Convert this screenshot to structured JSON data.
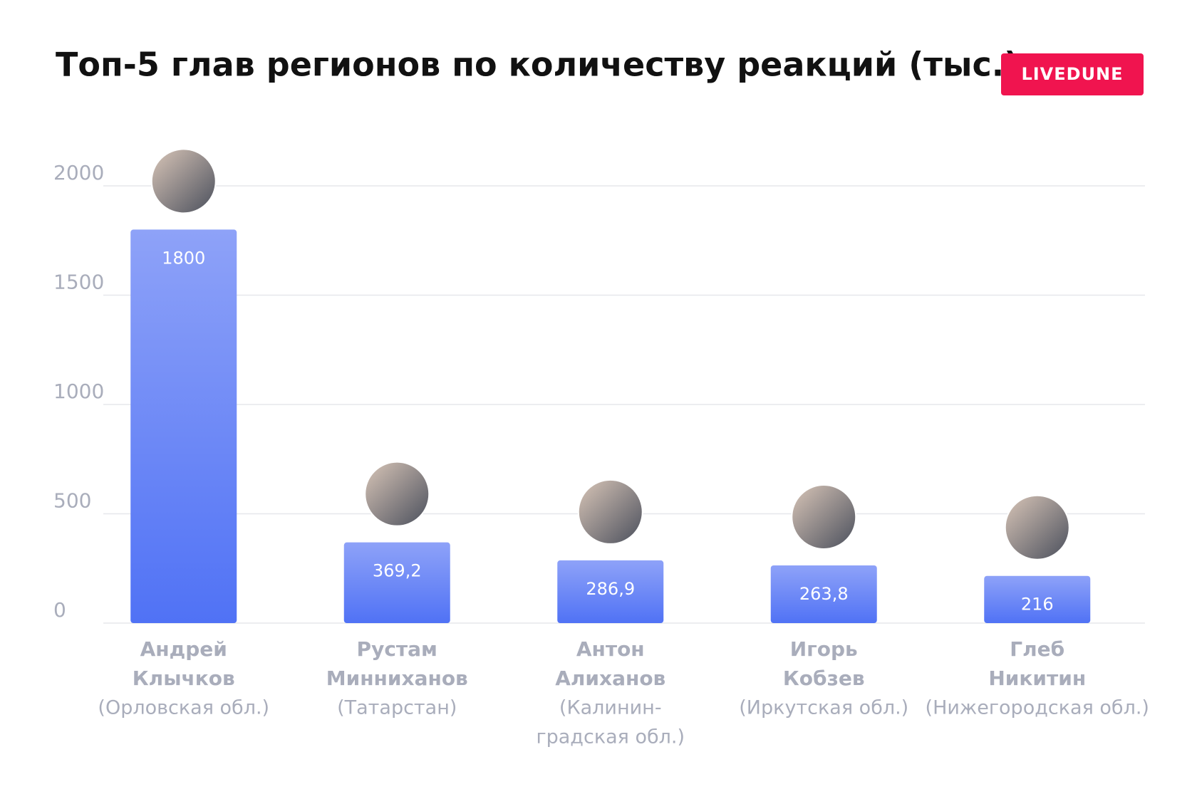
{
  "chart_data": {
    "type": "bar",
    "title": "Топ-5 глав регионов по количеству реакций (тыс.)",
    "logo": "LIVEDUNE",
    "categories": [
      [
        "Андрей",
        "Клычков",
        "(Орловская обл.)"
      ],
      [
        "Рустам",
        "Минниханов",
        "(Татарстан)"
      ],
      [
        "Антон",
        "Алиханов",
        "(Калинин-",
        "градская обл.)"
      ],
      [
        "Игорь",
        "Кобзев",
        "(Иркутская обл.)"
      ],
      [
        "Глеб",
        "Никитин",
        "(Нижегородская обл.)"
      ]
    ],
    "values": [
      1800,
      369.2,
      286.9,
      263.8,
      216
    ],
    "value_labels": [
      "1800",
      "369,2",
      "286,9",
      "263,8",
      "216"
    ],
    "color": "#5072f5",
    "ylim": [
      0,
      2000
    ],
    "yticks": [
      0,
      500,
      1000,
      1500,
      2000
    ],
    "grid": true
  }
}
